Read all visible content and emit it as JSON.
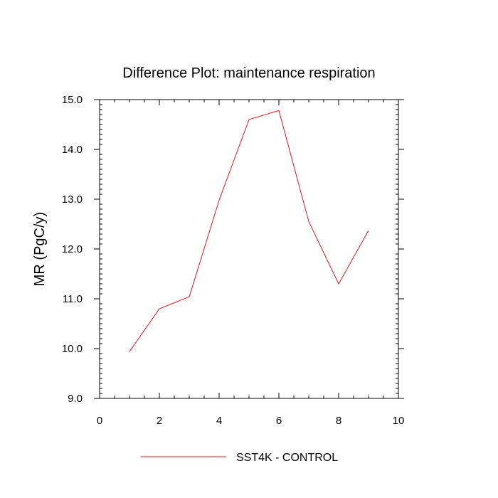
{
  "chart_data": {
    "type": "line",
    "title": "Difference Plot: maintenance respiration",
    "xlabel": "",
    "ylabel": "MR  (PgC/y)",
    "xlim": [
      0,
      10
    ],
    "ylim": [
      9.0,
      15.0
    ],
    "x_ticks": [
      0,
      2,
      4,
      6,
      8,
      10
    ],
    "x_tick_labels": [
      "0",
      "2",
      "4",
      "6",
      "8",
      "10"
    ],
    "y_ticks": [
      9.0,
      10.0,
      11.0,
      12.0,
      13.0,
      14.0,
      15.0
    ],
    "y_tick_labels": [
      "9.0",
      "10.0",
      "11.0",
      "12.0",
      "13.0",
      "14.0",
      "15.0"
    ],
    "grid": false,
    "legend_position": "bottom-center",
    "series": [
      {
        "name": "SST4K - CONTROL",
        "color": "#e8141b",
        "x": [
          1,
          2,
          3,
          4,
          5,
          6,
          7,
          8,
          9
        ],
        "y": [
          9.94,
          10.8,
          11.04,
          12.98,
          14.6,
          14.78,
          12.55,
          11.3,
          12.37
        ]
      }
    ]
  }
}
